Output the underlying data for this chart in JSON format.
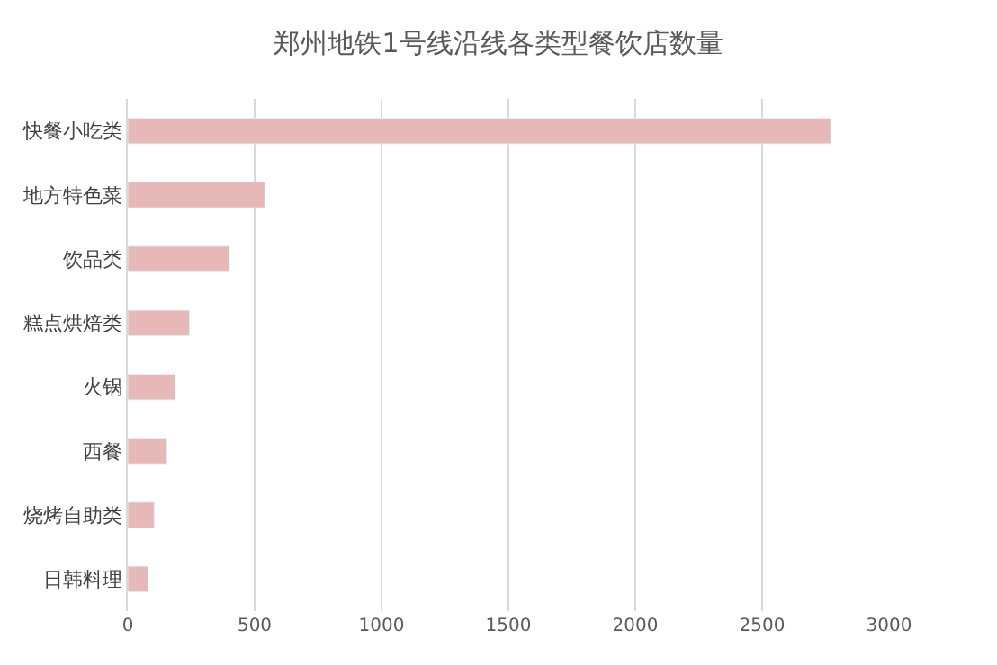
{
  "chart_data": {
    "type": "bar",
    "orientation": "horizontal",
    "title": "郑州地铁1号线沿线各类型餐饮店数量",
    "categories": [
      "快餐小吃类",
      "地方特色菜",
      "饮品类",
      "糕点烘焙类",
      "火锅",
      "西餐",
      "烧烤自助类",
      "日韩料理"
    ],
    "values": [
      2770,
      540,
      400,
      243,
      187,
      154,
      104,
      80
    ],
    "color": "#e6b8b7",
    "xlim": [
      0,
      3000
    ],
    "xticks": [
      0,
      500,
      1000,
      1500,
      2000,
      2500,
      3000
    ],
    "grid": "x"
  }
}
